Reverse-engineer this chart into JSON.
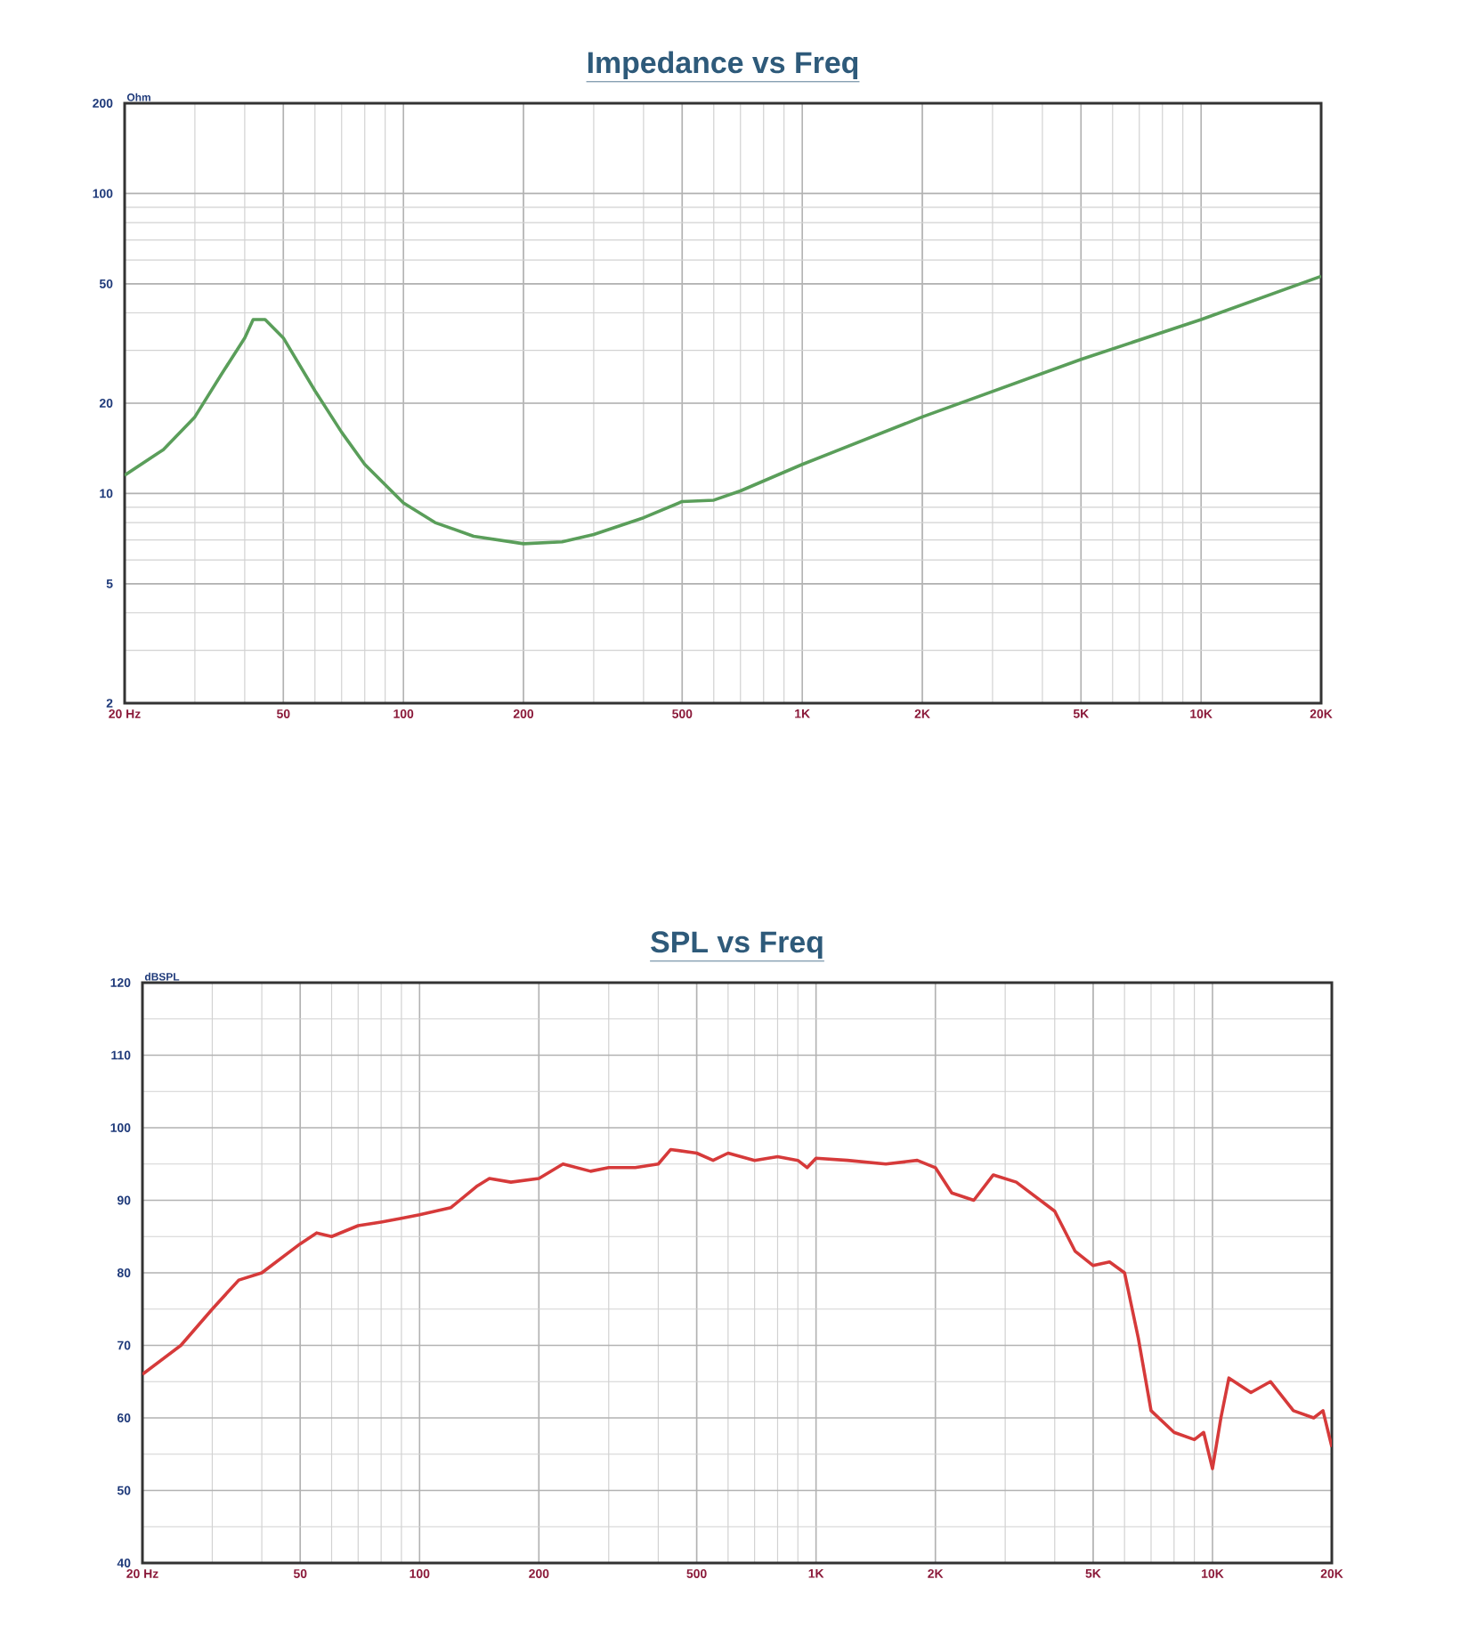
{
  "chart_data": [
    {
      "type": "line",
      "title": "Impedance vs Freq",
      "ylabel": "Ohm",
      "log": "xy",
      "grid": true,
      "marker": "none",
      "line_style": "solid",
      "xlim": [
        20,
        20000
      ],
      "ylim": [
        2,
        200
      ],
      "xticks": [
        {
          "value": 20,
          "label": "20 Hz"
        },
        50,
        100,
        200,
        500,
        {
          "value": 1000,
          "label": "1K"
        },
        {
          "value": 2000,
          "label": "2K"
        },
        {
          "value": 5000,
          "label": "5K"
        },
        {
          "value": 10000,
          "label": "10K"
        },
        {
          "value": 20000,
          "label": "20K"
        }
      ],
      "yticks": [
        2,
        5,
        10,
        20,
        50,
        100,
        200
      ],
      "x": [
        20,
        25,
        30,
        35,
        40,
        42,
        45,
        50,
        60,
        70,
        80,
        100,
        120,
        150,
        200,
        250,
        300,
        400,
        500,
        600,
        700,
        1000,
        2000,
        5000,
        10000,
        20000
      ],
      "series": [
        {
          "color": "#5a9e5a",
          "values": [
            11.5,
            14,
            18,
            25,
            33,
            38,
            38,
            33,
            22,
            16,
            12.5,
            9.3,
            8,
            7.2,
            6.8,
            6.9,
            7.3,
            8.3,
            9.4,
            9.5,
            10.2,
            12.5,
            18,
            28,
            38,
            53
          ]
        }
      ]
    },
    {
      "type": "line",
      "title": "SPL vs Freq",
      "ylabel": "dBSPL",
      "log": "x",
      "grid": true,
      "marker": "none",
      "line_style": "solid",
      "xlim": [
        20,
        20000
      ],
      "ylim": [
        40,
        120
      ],
      "xticks": [
        {
          "value": 20,
          "label": "20 Hz"
        },
        50,
        100,
        200,
        500,
        {
          "value": 1000,
          "label": "1K"
        },
        {
          "value": 2000,
          "label": "2K"
        },
        {
          "value": 5000,
          "label": "5K"
        },
        {
          "value": 10000,
          "label": "10K"
        },
        {
          "value": 20000,
          "label": "20K"
        }
      ],
      "yticks": [
        40,
        50,
        60,
        70,
        80,
        90,
        100,
        110,
        120
      ],
      "x": [
        20,
        25,
        30,
        35,
        40,
        50,
        55,
        60,
        70,
        80,
        90,
        100,
        120,
        140,
        150,
        170,
        200,
        230,
        270,
        300,
        350,
        400,
        430,
        500,
        550,
        600,
        700,
        800,
        900,
        950,
        1000,
        1200,
        1500,
        1800,
        2000,
        2200,
        2500,
        2800,
        3200,
        4000,
        4500,
        5000,
        5500,
        6000,
        6500,
        7000,
        8000,
        9000,
        9500,
        10000,
        10500,
        11000,
        12500,
        14000,
        16000,
        18000,
        19000,
        20000
      ],
      "series": [
        {
          "color": "#d63a3a",
          "values": [
            66,
            70,
            75,
            79,
            80,
            84,
            85.5,
            85,
            86.5,
            87,
            87.5,
            88,
            89,
            92,
            93,
            92.5,
            93,
            95,
            94,
            94.5,
            94.5,
            95,
            97,
            96.5,
            95.5,
            96.5,
            95.5,
            96,
            95.5,
            94.5,
            95.8,
            95.5,
            95,
            95.5,
            94.5,
            91,
            90,
            93.5,
            92.5,
            88.5,
            83,
            81,
            81.5,
            80,
            71,
            61,
            58,
            57,
            58,
            53,
            60,
            65.5,
            63.5,
            65,
            61,
            60,
            61,
            56
          ]
        }
      ]
    }
  ]
}
